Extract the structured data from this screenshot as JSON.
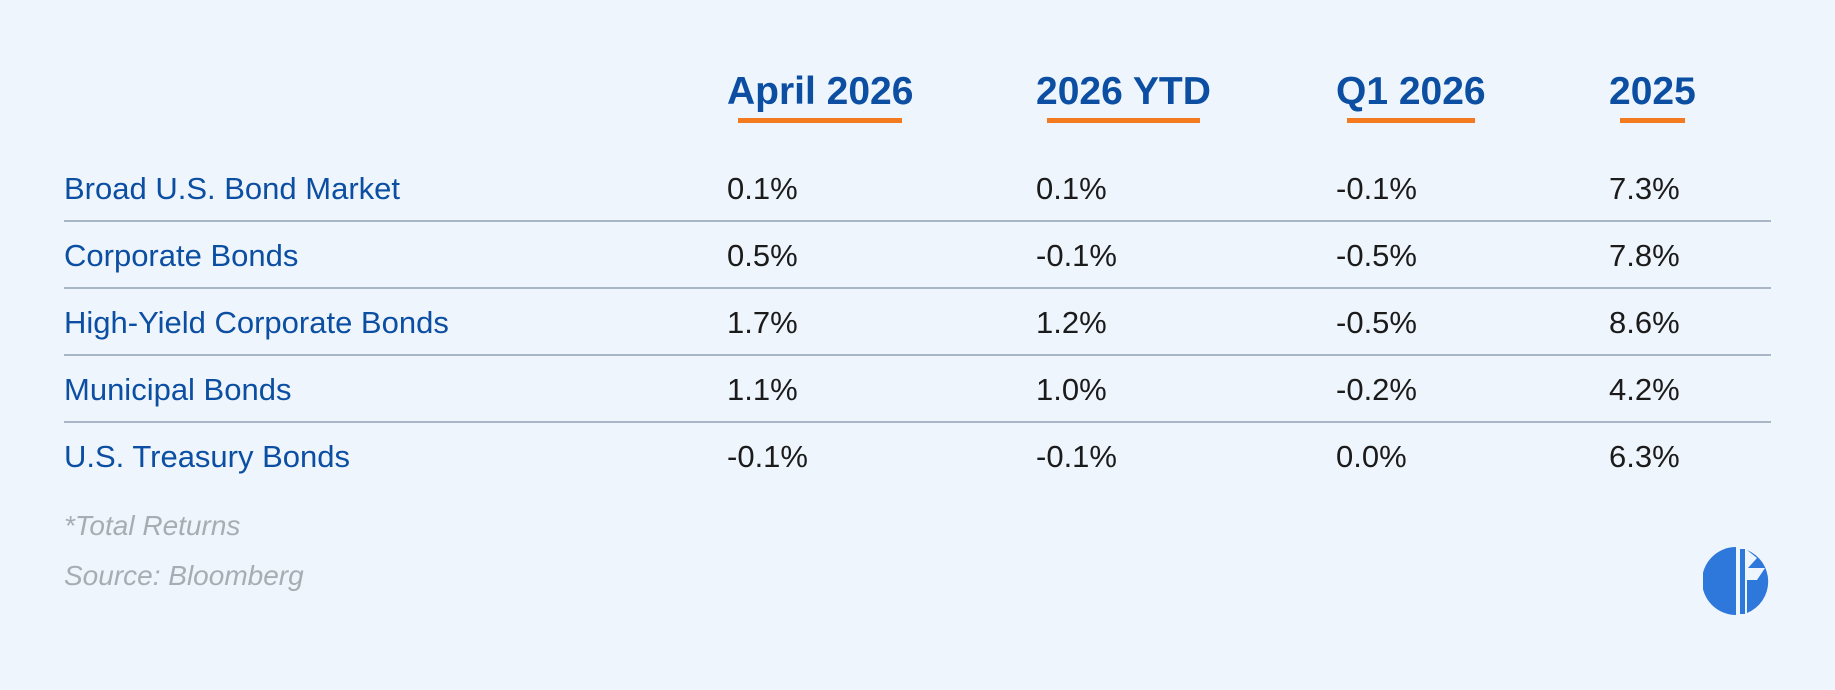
{
  "chart_data": {
    "type": "table",
    "columns": [
      "April 2026",
      "2026 YTD",
      "Q1 2026",
      "2025"
    ],
    "rows": [
      {
        "label": "Broad U.S. Bond Market",
        "values": [
          "0.1%",
          "0.1%",
          "-0.1%",
          "7.3%"
        ]
      },
      {
        "label": "Corporate Bonds",
        "values": [
          "0.5%",
          "-0.1%",
          "-0.5%",
          "7.8%"
        ]
      },
      {
        "label": "High-Yield Corporate Bonds",
        "values": [
          "1.7%",
          "1.2%",
          "-0.5%",
          "8.6%"
        ]
      },
      {
        "label": "Municipal Bonds",
        "values": [
          "1.1%",
          "1.0%",
          "-0.2%",
          "4.2%"
        ]
      },
      {
        "label": "U.S. Treasury Bonds",
        "values": [
          "-0.1%",
          "-0.1%",
          "0.0%",
          "6.3%"
        ]
      }
    ]
  },
  "footnotes": {
    "note": "*Total Returns",
    "source": "Source: Bloomberg"
  },
  "colors": {
    "background": "#eef5fc",
    "header_text": "#0b4ea2",
    "accent_underline": "#f47a20",
    "row_label_text": "#0b4ea2",
    "value_text": "#1b1b1b",
    "divider": "#a9b6c5",
    "footnote_text": "#a8adb3",
    "logo": "#2f78db"
  },
  "logo": {
    "icon": "brand-logo-icon"
  }
}
